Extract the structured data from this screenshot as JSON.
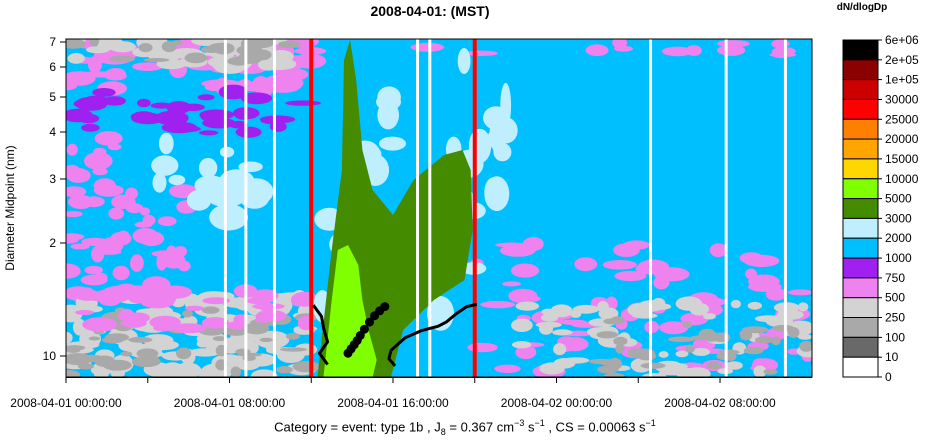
{
  "chart_data": {
    "type": "heatmap",
    "title": "2008-04-01: (MST)",
    "ylabel": "Diameter Midpoint (nm)",
    "y_scale": "log",
    "ylim_nm": [
      8.5,
      7.1
    ],
    "y_ticks": [
      {
        "label": "7",
        "value": 7
      },
      {
        "label": "6",
        "value": 6
      },
      {
        "label": "5",
        "value": 5
      },
      {
        "label": "4",
        "value": 4
      },
      {
        "label": "3",
        "value": 3
      },
      {
        "label": "2",
        "value": 2
      },
      {
        "label": "10",
        "value": 10
      }
    ],
    "x_ticks": [
      {
        "label": "2008-04-01 00:00:00",
        "hour": 0
      },
      {
        "label": "2008-04-01 08:00:00",
        "hour": 8
      },
      {
        "label": "2008-04-01 16:00:00",
        "hour": 16
      },
      {
        "label": "2008-04-02 00:00:00",
        "hour": 24
      },
      {
        "label": "2008-04-02 08:00:00",
        "hour": 32
      }
    ],
    "x_minor_ticks_hours": [
      4,
      12,
      20,
      28
    ],
    "xlim_hours": [
      0,
      36.5
    ],
    "colorbar": {
      "title": "dN/dlogDp",
      "levels": [
        {
          "label": "6e+06",
          "color": "#000000"
        },
        {
          "label": "2e+05",
          "color": "#8b0000"
        },
        {
          "label": "1e+05",
          "color": "#cd0000"
        },
        {
          "label": "30000",
          "color": "#ff0000"
        },
        {
          "label": "25000",
          "color": "#ff7f00"
        },
        {
          "label": "20000",
          "color": "#ffa500"
        },
        {
          "label": "15000",
          "color": "#ffd700"
        },
        {
          "label": "10000",
          "color": "#7fff00"
        },
        {
          "label": "5000",
          "color": "#458b00"
        },
        {
          "label": "3000",
          "color": "#bfefff"
        },
        {
          "label": "2000",
          "color": "#00bfff"
        },
        {
          "label": "1000",
          "color": "#a020f0"
        },
        {
          "label": "750",
          "color": "#ee82ee"
        },
        {
          "label": "500",
          "color": "#d3d3d3"
        },
        {
          "label": "250",
          "color": "#a9a9a9"
        },
        {
          "label": "100",
          "color": "#696969"
        },
        {
          "label": "10",
          "color": "#ffffff"
        },
        {
          "label": "0",
          "color": "#ffffff"
        }
      ]
    },
    "event_lines_hours": [
      12,
      20
    ],
    "event_line_color": "#ff0000",
    "data_gaps_hours": [
      7.8,
      8.8,
      10.2,
      17.2,
      17.8,
      28.6,
      32.3,
      35.2
    ],
    "growth_points": [
      {
        "hour": 13.8,
        "dp": 9.8
      },
      {
        "hour": 13.95,
        "dp": 9.5
      },
      {
        "hour": 14.1,
        "dp": 9.2
      },
      {
        "hour": 14.25,
        "dp": 8.9
      },
      {
        "hour": 14.4,
        "dp": 8.55
      },
      {
        "hour": 14.6,
        "dp": 8.1
      },
      {
        "hour": 14.85,
        "dp": 7.6
      },
      {
        "hour": 15.1,
        "dp": 7.15
      },
      {
        "hour": 15.35,
        "dp": 6.8
      },
      {
        "hour": 15.6,
        "dp": 6.5
      }
    ],
    "envelope_left": [
      {
        "hour": 12.1,
        "dp": 6.4
      },
      {
        "hour": 12.5,
        "dp": 7.2
      },
      {
        "hour": 12.6,
        "dp": 8.0
      },
      {
        "hour": 12.8,
        "dp": 9.0
      },
      {
        "hour": 12.4,
        "dp": 9.8
      },
      {
        "hour": 12.8,
        "dp": 10.6
      }
    ],
    "envelope_right": [
      {
        "hour": 16.1,
        "dp": 10.7
      },
      {
        "hour": 15.8,
        "dp": 10.2
      },
      {
        "hour": 15.9,
        "dp": 9.6
      },
      {
        "hour": 16.6,
        "dp": 8.7
      },
      {
        "hour": 17.4,
        "dp": 8.2
      },
      {
        "hour": 18.2,
        "dp": 7.9
      },
      {
        "hour": 18.6,
        "dp": 7.6
      },
      {
        "hour": 19.1,
        "dp": 7.0
      },
      {
        "hour": 19.6,
        "dp": 6.5
      },
      {
        "hour": 20.1,
        "dp": 6.35
      }
    ]
  },
  "caption": {
    "prefix": "Category =  event: type 1b , J",
    "j_sub": "8",
    "j_value": " =  0.367  cm",
    "cm_sup": "−3",
    "s1": "  s",
    "s1_sup": "−1",
    "cs_part": " , CS =  0.00063  s",
    "s2_sup": "−1"
  }
}
